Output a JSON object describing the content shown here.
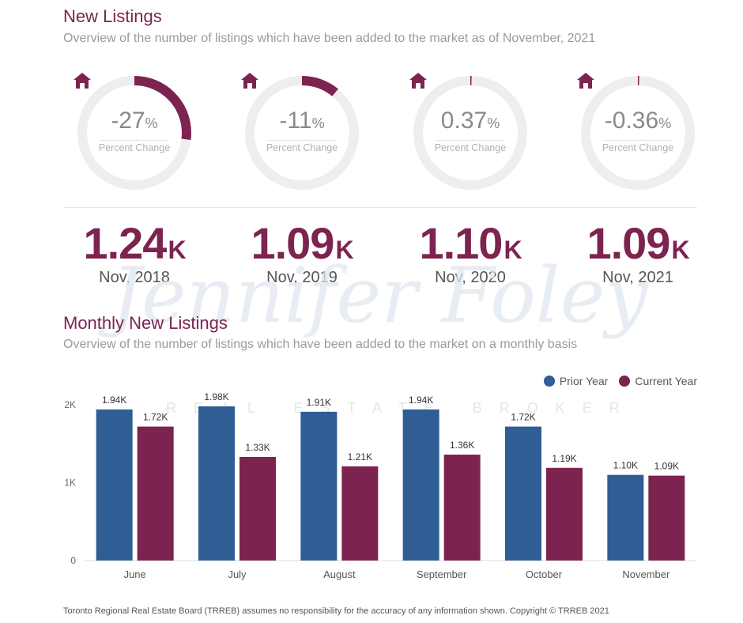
{
  "header": {
    "title": "New Listings",
    "subtitle": "Overview of the number of listings which have been added to the market as of November, 2021"
  },
  "gauges": [
    {
      "value": "-27",
      "unit": "%",
      "label": "Percent Change",
      "fraction": 0.27
    },
    {
      "value": "-11",
      "unit": "%",
      "label": "Percent Change",
      "fraction": 0.11
    },
    {
      "value": "0.37",
      "unit": "%",
      "label": "Percent Change",
      "fraction": 0.0037
    },
    {
      "value": "-0.36",
      "unit": "%",
      "label": "Percent Change",
      "fraction": 0.0036
    }
  ],
  "totals": [
    {
      "value": "1.24",
      "suffix": "K",
      "label": "Nov, 2018"
    },
    {
      "value": "1.09",
      "suffix": "K",
      "label": "Nov, 2019"
    },
    {
      "value": "1.10",
      "suffix": "K",
      "label": "Nov, 2020"
    },
    {
      "value": "1.09",
      "suffix": "K",
      "label": "Nov, 2021"
    }
  ],
  "monthly": {
    "title": "Monthly New Listings",
    "subtitle": "Overview of the number of listings which have been added to the market on a monthly basis"
  },
  "watermark": {
    "name": "Jennifer Foley",
    "tagline": "REAL ESTATE BROKER"
  },
  "colors": {
    "accent": "#7d2350",
    "prior": "#2f5d94",
    "current": "#7d2350",
    "track": "#eeeeee"
  },
  "icons": {
    "gauge": "house-icon",
    "legend": "circle-dot-icon"
  },
  "chart_data": {
    "type": "bar",
    "categories": [
      "June",
      "July",
      "August",
      "September",
      "October",
      "November"
    ],
    "series": [
      {
        "name": "Prior Year",
        "values": [
          1940,
          1980,
          1910,
          1940,
          1720,
          1100
        ],
        "labels": [
          "1.94K",
          "1.98K",
          "1.91K",
          "1.94K",
          "1.72K",
          "1.10K"
        ]
      },
      {
        "name": "Current Year",
        "values": [
          1720,
          1330,
          1210,
          1360,
          1190,
          1090
        ],
        "labels": [
          "1.72K",
          "1.33K",
          "1.21K",
          "1.36K",
          "1.19K",
          "1.09K"
        ]
      }
    ],
    "yticks": [
      "0",
      "1K",
      "2K"
    ],
    "ylim": [
      0,
      2000
    ],
    "legend": "top-right",
    "grid": false
  },
  "footer": "Toronto Regional Real Estate Board (TRREB) assumes no responsibility for the accuracy of any information shown. Copyright © TRREB 2021"
}
